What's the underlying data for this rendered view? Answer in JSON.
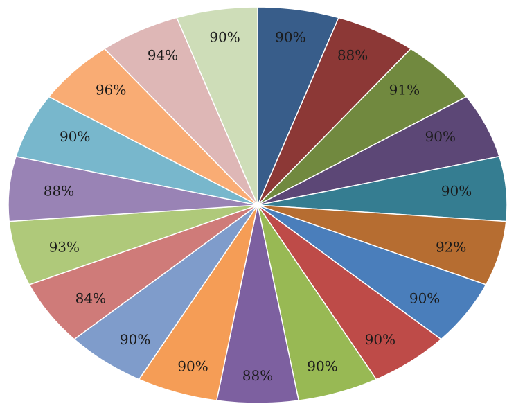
{
  "chart_data": {
    "type": "pie",
    "values": [
      "90%",
      "88%",
      "91%",
      "90%",
      "90%",
      "92%",
      "90%",
      "90%",
      "90%",
      "88%",
      "90%",
      "90%",
      "84%",
      "93%",
      "88%",
      "90%",
      "96%",
      "94%",
      "90%"
    ],
    "colors": [
      "#385D8A",
      "#8C3836",
      "#71893F",
      "#5C4776",
      "#357D91",
      "#B66D31",
      "#4A7EBB",
      "#BE4B48",
      "#98B954",
      "#7D60A0",
      "#F59D56",
      "#7F9CCB",
      "#CF7B79",
      "#AFC97A",
      "#9983B5",
      "#78B7CC",
      "#F9AC74",
      "#DEB7B6",
      "#CEDDB8"
    ],
    "legend": "none"
  }
}
